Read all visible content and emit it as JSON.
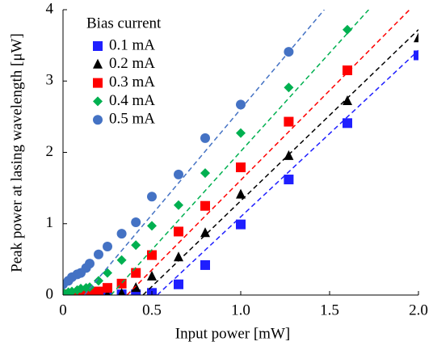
{
  "chart_data": {
    "type": "scatter",
    "xlabel": "Input power [mW]",
    "ylabel": "Peak power at lasing wavelength [μW]",
    "legend_title": "Bias current",
    "xlim": [
      0,
      2.0
    ],
    "ylim": [
      0,
      4
    ],
    "xticks": [
      0,
      0.5,
      {
        "value": 1,
        "label": "1.0"
      },
      1.5,
      {
        "value": 2,
        "label": "2.0"
      }
    ],
    "yticks": [
      0,
      1,
      2,
      3,
      4
    ],
    "series": [
      {
        "name": "0.1 mA",
        "color": "#1f1fff",
        "marker": "square",
        "x": [
          0,
          0.05,
          0.1,
          0.15,
          0.2,
          0.25,
          0.33,
          0.41,
          0.5,
          0.65,
          0.8,
          1.0,
          1.27,
          1.6,
          2.0
        ],
        "values": [
          0,
          0,
          0,
          0,
          0,
          0,
          0.01,
          0.01,
          0.03,
          0.15,
          0.42,
          0.99,
          1.62,
          2.41,
          3.36
        ],
        "fit_x": [
          0.53,
          2.0
        ],
        "fit_y": [
          0,
          3.43
        ]
      },
      {
        "name": "0.2 mA",
        "color": "#000000",
        "marker": "triangle",
        "x": [
          0,
          0.05,
          0.1,
          0.15,
          0.2,
          0.25,
          0.33,
          0.41,
          0.5,
          0.65,
          0.8,
          1.0,
          1.27,
          1.6,
          2.0
        ],
        "values": [
          0,
          0,
          0,
          0,
          0,
          0,
          0.02,
          0.1,
          0.26,
          0.53,
          0.87,
          1.41,
          1.95,
          2.72,
          3.6
        ],
        "fit_x": [
          0.45,
          2.0
        ],
        "fit_y": [
          0,
          3.72
        ]
      },
      {
        "name": "0.3 mA",
        "color": "#ff0000",
        "marker": "square",
        "x": [
          0,
          0.05,
          0.1,
          0.15,
          0.2,
          0.25,
          0.33,
          0.41,
          0.5,
          0.65,
          0.8,
          1.0,
          1.27,
          1.6
        ],
        "values": [
          0.01,
          0.01,
          0.02,
          0.03,
          0.05,
          0.1,
          0.16,
          0.31,
          0.56,
          0.89,
          1.25,
          1.79,
          2.43,
          3.15
        ],
        "fit_x": [
          0.36,
          1.95
        ],
        "fit_y": [
          0,
          4
        ]
      },
      {
        "name": "0.4 mA",
        "color": "#00b050",
        "marker": "diamond",
        "x": [
          0,
          0.03,
          0.05,
          0.08,
          0.1,
          0.13,
          0.15,
          0.2,
          0.25,
          0.33,
          0.41,
          0.5,
          0.65,
          0.8,
          1.0,
          1.27,
          1.6
        ],
        "values": [
          0.04,
          0.04,
          0.05,
          0.07,
          0.09,
          0.1,
          0.11,
          0.2,
          0.31,
          0.49,
          0.7,
          0.97,
          1.26,
          1.71,
          2.27,
          2.91,
          3.72
        ],
        "fit_x": [
          0.27,
          1.72
        ],
        "fit_y": [
          0,
          4
        ]
      },
      {
        "name": "0.5 mA",
        "color": "#4472c4",
        "marker": "circle",
        "x": [
          0,
          0.03,
          0.05,
          0.08,
          0.1,
          0.13,
          0.15,
          0.2,
          0.25,
          0.33,
          0.41,
          0.5,
          0.65,
          0.8,
          1.0,
          1.27
        ],
        "values": [
          0.15,
          0.2,
          0.25,
          0.29,
          0.31,
          0.38,
          0.44,
          0.57,
          0.68,
          0.86,
          1.02,
          1.38,
          1.69,
          2.2,
          2.67,
          3.41
        ],
        "fit_x": [
          0.12,
          1.47
        ],
        "fit_y": [
          0,
          4
        ]
      }
    ]
  }
}
